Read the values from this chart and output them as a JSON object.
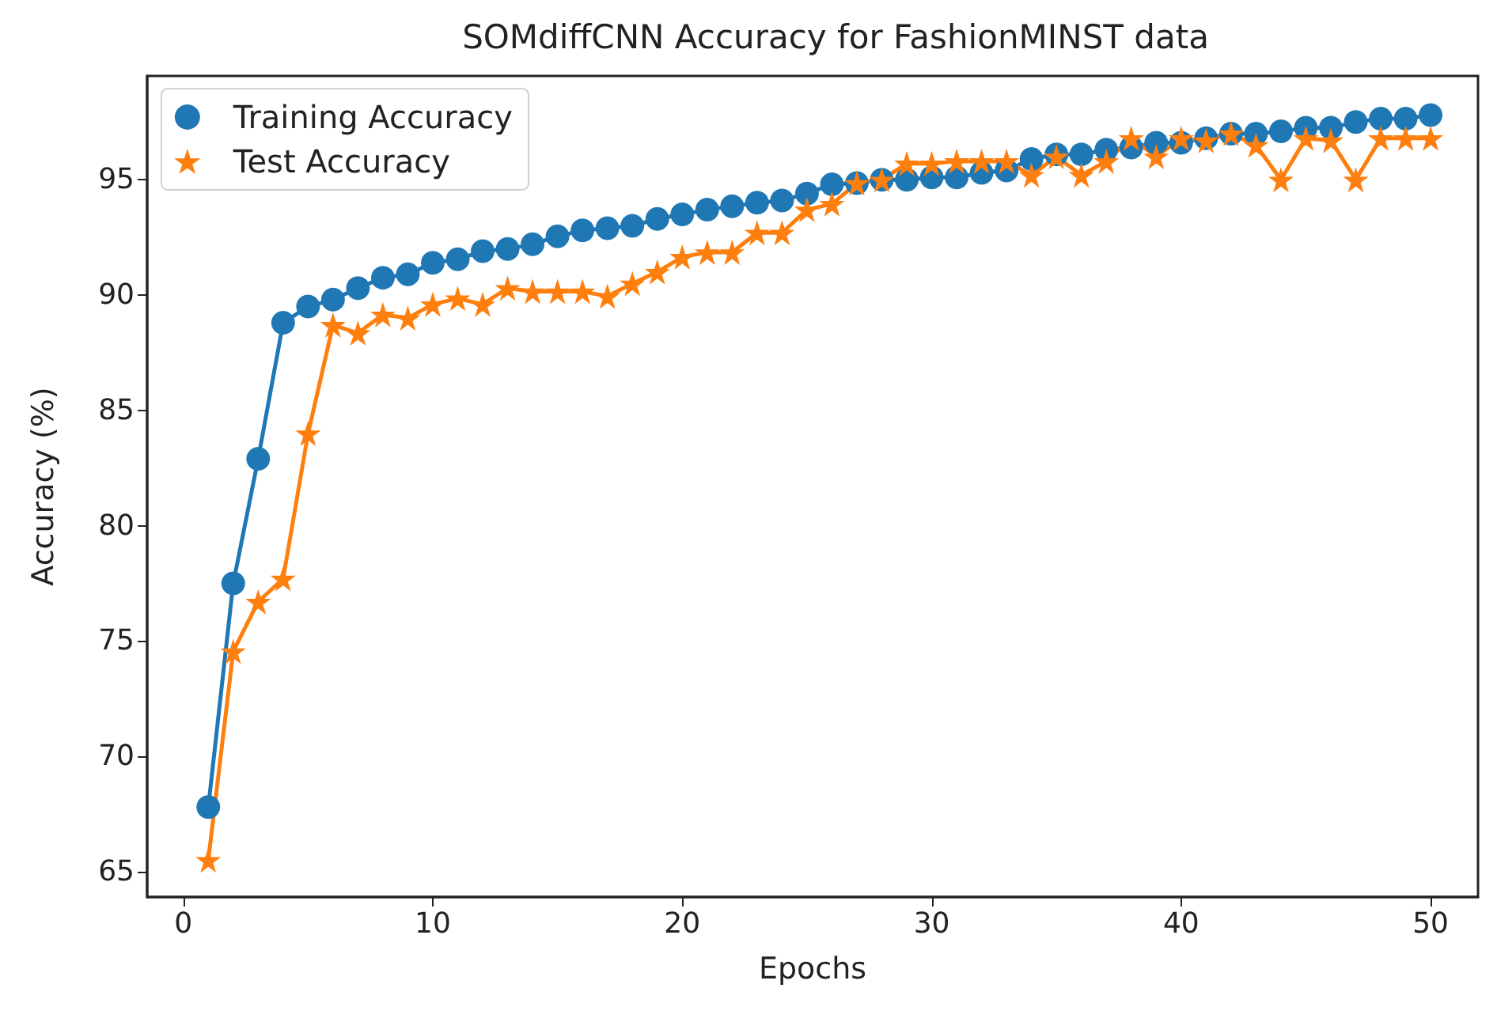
{
  "chart_data": {
    "type": "line",
    "title": "SOMdiffCNN Accuracy for FashionMINST data",
    "xlabel": "Epochs",
    "ylabel": "Accuracy (%)",
    "x": [
      1,
      2,
      3,
      4,
      5,
      6,
      7,
      8,
      9,
      10,
      11,
      12,
      13,
      14,
      15,
      16,
      17,
      18,
      19,
      20,
      21,
      22,
      23,
      24,
      25,
      26,
      27,
      28,
      29,
      30,
      31,
      32,
      33,
      34,
      35,
      36,
      37,
      38,
      39,
      40,
      41,
      42,
      43,
      44,
      45,
      46,
      47,
      48,
      49,
      50
    ],
    "series": [
      {
        "name": "Training Accuracy",
        "color": "#1f77b4",
        "marker": "circle",
        "values": [
          67.8,
          77.5,
          82.9,
          88.8,
          89.5,
          89.8,
          90.3,
          90.75,
          90.9,
          91.4,
          91.55,
          91.9,
          92.0,
          92.2,
          92.55,
          92.8,
          92.9,
          93.0,
          93.3,
          93.5,
          93.7,
          93.85,
          94.0,
          94.1,
          94.4,
          94.8,
          94.85,
          95.0,
          95.0,
          95.1,
          95.1,
          95.3,
          95.4,
          95.9,
          96.1,
          96.1,
          96.3,
          96.4,
          96.6,
          96.6,
          96.8,
          97.0,
          97.0,
          97.1,
          97.25,
          97.25,
          97.5,
          97.65,
          97.65,
          97.8
        ]
      },
      {
        "name": "Test Accuracy",
        "color": "#ff7f0e",
        "marker": "star",
        "values": [
          65.5,
          74.55,
          76.7,
          77.7,
          84.0,
          88.7,
          88.35,
          89.15,
          89.0,
          89.6,
          89.85,
          89.6,
          90.3,
          90.15,
          90.15,
          90.15,
          89.95,
          90.5,
          91.0,
          91.65,
          91.85,
          91.85,
          92.7,
          92.7,
          93.7,
          93.95,
          94.85,
          95.0,
          95.7,
          95.7,
          95.8,
          95.8,
          95.8,
          95.2,
          96.0,
          95.2,
          95.8,
          96.8,
          96.0,
          96.8,
          96.7,
          97.0,
          96.5,
          95.0,
          96.8,
          96.7,
          95.0,
          96.8,
          96.8,
          96.8
        ]
      }
    ],
    "xlim": [
      -1.45,
      51.9
    ],
    "ylim": [
      63.9,
      99.5
    ],
    "xticks": [
      0,
      10,
      20,
      30,
      40,
      50
    ],
    "yticks": [
      65,
      70,
      75,
      80,
      85,
      90,
      95
    ],
    "grid": false,
    "legend": "top left",
    "line_style": "solid"
  }
}
